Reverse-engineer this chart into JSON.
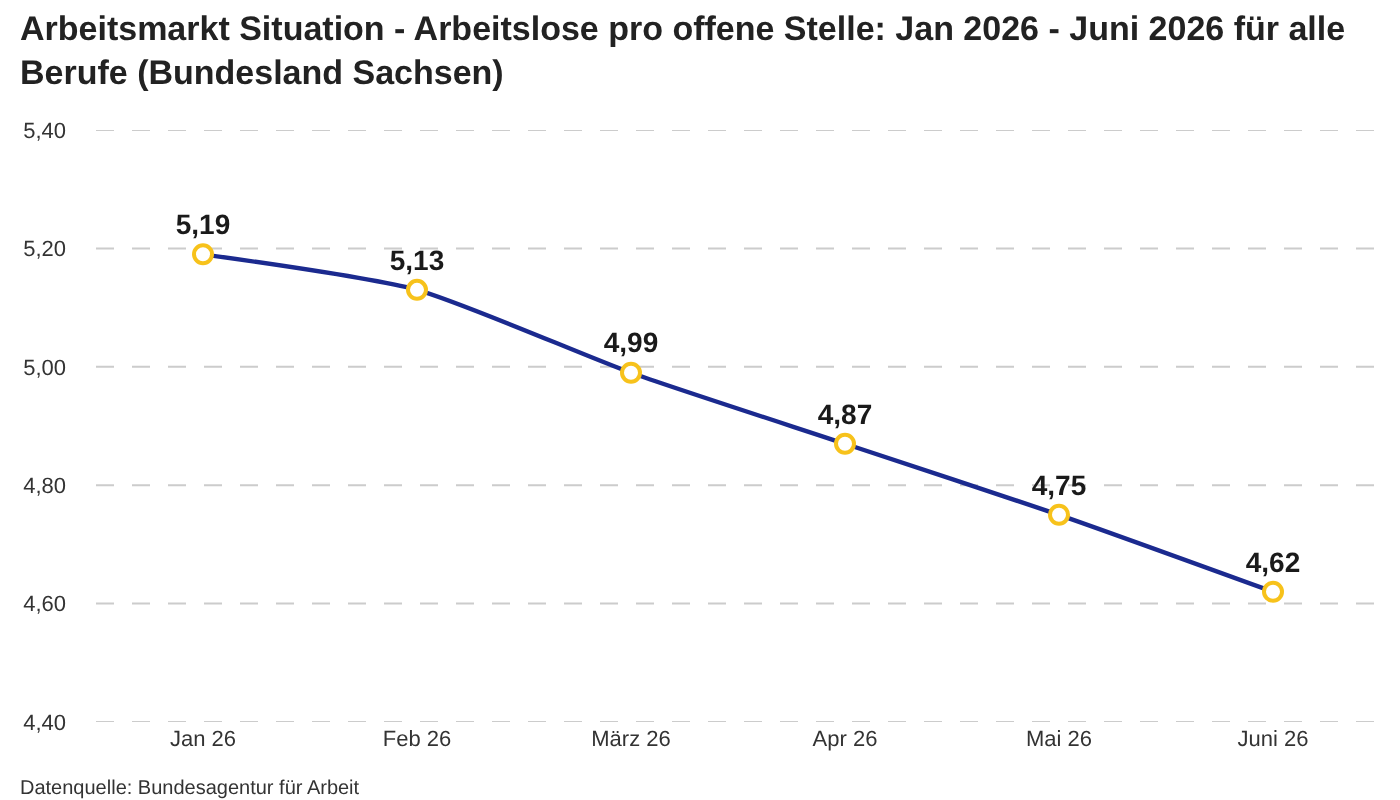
{
  "chart_data": {
    "type": "line",
    "title": "Arbeitsmarkt Situation - Arbeitslose pro offene Stelle: Jan 2026 - Juni 2026 für alle Berufe (Bundesland Sachsen)",
    "categories": [
      "Jan 26",
      "Feb 26",
      "März 26",
      "Apr 26",
      "Mai 26",
      "Juni 26"
    ],
    "series": [
      {
        "color": "#1b2a8f",
        "values": [
          5.19,
          5.13,
          4.99,
          4.87,
          4.75,
          4.62
        ],
        "value_labels": [
          "5,19",
          "5,13",
          "4,99",
          "4,87",
          "4,75",
          "4,62"
        ]
      }
    ],
    "ylim": [
      4.4,
      5.4
    ],
    "yticks": [
      {
        "value": 4.4,
        "label": "4,40"
      },
      {
        "value": 4.6,
        "label": "4,60"
      },
      {
        "value": 4.8,
        "label": "4,80"
      },
      {
        "value": 5.0,
        "label": "5,00"
      },
      {
        "value": 5.2,
        "label": "5,20"
      },
      {
        "value": 5.4,
        "label": "5,40"
      }
    ],
    "grid": "y",
    "marker": "circle",
    "line_style": "solid",
    "annotations": [
      "Datenquelle: Bundesagentur für Arbeit"
    ]
  }
}
